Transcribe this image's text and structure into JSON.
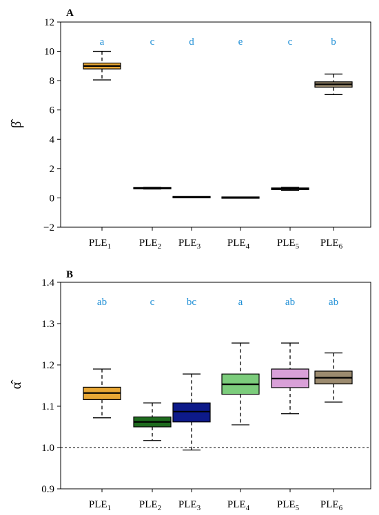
{
  "chart_data": [
    {
      "type": "box",
      "panel": "A",
      "ylabel": "β̂",
      "ylim": [
        -2,
        12
      ],
      "yticks": [
        -2,
        0,
        2,
        4,
        6,
        8,
        10,
        12
      ],
      "categories": [
        {
          "base": "PLE",
          "sub": "1"
        },
        {
          "base": "PLE",
          "sub": "2"
        },
        {
          "base": "PLE",
          "sub": "3"
        },
        {
          "base": "PLE",
          "sub": "4"
        },
        {
          "base": "PLE",
          "sub": "5"
        },
        {
          "base": "PLE",
          "sub": "6"
        }
      ],
      "boxes": [
        {
          "min": 8.05,
          "q1": 8.8,
          "median": 9.0,
          "q3": 9.2,
          "max": 10.0,
          "color": "#e8a735",
          "group": "a"
        },
        {
          "min": 0.6,
          "q1": 0.62,
          "median": 0.66,
          "q3": 0.7,
          "max": 0.72,
          "color": "#2e7d32",
          "group": "c"
        },
        {
          "min": 0.03,
          "q1": 0.04,
          "median": 0.05,
          "q3": 0.06,
          "max": 0.07,
          "color": "#1a237e",
          "group": "d"
        },
        {
          "min": 0.01,
          "q1": 0.015,
          "median": 0.02,
          "q3": 0.025,
          "max": 0.03,
          "color": "#7bc67b",
          "group": "e"
        },
        {
          "min": 0.52,
          "q1": 0.57,
          "median": 0.62,
          "q3": 0.68,
          "max": 0.72,
          "color": "#d4a0d6",
          "group": "c"
        },
        {
          "min": 7.05,
          "q1": 7.55,
          "median": 7.75,
          "q3": 7.92,
          "max": 8.45,
          "color": "#9a8a6e",
          "group": "b"
        }
      ]
    },
    {
      "type": "box",
      "panel": "B",
      "ylabel": "α̂",
      "ylim": [
        0.9,
        1.4
      ],
      "yticks": [
        0.9,
        1.0,
        1.1,
        1.2,
        1.3,
        1.4
      ],
      "reference_line": 1.0,
      "categories": [
        {
          "base": "PLE",
          "sub": "1"
        },
        {
          "base": "PLE",
          "sub": "2"
        },
        {
          "base": "PLE",
          "sub": "3"
        },
        {
          "base": "PLE",
          "sub": "4"
        },
        {
          "base": "PLE",
          "sub": "5"
        },
        {
          "base": "PLE",
          "sub": "6"
        }
      ],
      "boxes": [
        {
          "min": 1.072,
          "q1": 1.116,
          "median": 1.132,
          "q3": 1.146,
          "max": 1.19,
          "color": "#e8a735",
          "group": "ab"
        },
        {
          "min": 1.017,
          "q1": 1.05,
          "median": 1.062,
          "q3": 1.074,
          "max": 1.108,
          "color": "#1e6b1e",
          "group": "c"
        },
        {
          "min": 0.994,
          "q1": 1.062,
          "median": 1.087,
          "q3": 1.108,
          "max": 1.178,
          "color": "#0d1a8a",
          "group": "bc"
        },
        {
          "min": 1.055,
          "q1": 1.129,
          "median": 1.153,
          "q3": 1.178,
          "max": 1.253,
          "color": "#7ccd7c",
          "group": "a"
        },
        {
          "min": 1.082,
          "q1": 1.145,
          "median": 1.167,
          "q3": 1.19,
          "max": 1.253,
          "color": "#d9a0d8",
          "group": "ab"
        },
        {
          "min": 1.11,
          "q1": 1.154,
          "median": 1.169,
          "q3": 1.185,
          "max": 1.229,
          "color": "#9c8b6f",
          "group": "ab"
        }
      ]
    }
  ]
}
